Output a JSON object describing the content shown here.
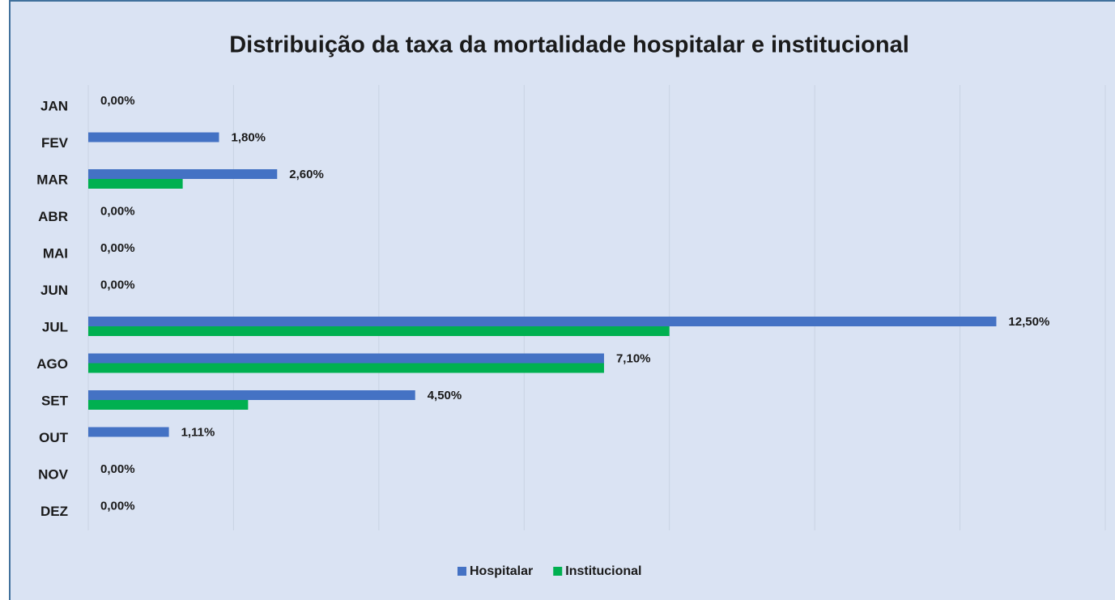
{
  "chart_data": {
    "type": "barh",
    "title": "Distribuição da taxa da mortalidade hospitalar e institucional",
    "categories": [
      "JAN",
      "FEV",
      "MAR",
      "ABR",
      "MAI",
      "JUN",
      "JUL",
      "AGO",
      "SET",
      "OUT",
      "NOV",
      "DEZ"
    ],
    "series": [
      {
        "name": "Hospitalar",
        "color": "#4472c4",
        "values": [
          0,
          1.8,
          2.6,
          0,
          0,
          0,
          12.5,
          7.1,
          4.5,
          1.11,
          0,
          0
        ],
        "value_labels": [
          "0,00%",
          "1,80%",
          "2,60%",
          "0,00%",
          "0,00%",
          "0,00%",
          "12,50%",
          "7,10%",
          "4,50%",
          "1,11%",
          "0,00%",
          "0,00%"
        ]
      },
      {
        "name": "Institucional",
        "color": "#00b050",
        "values": [
          0,
          0,
          1.3,
          0,
          0,
          0,
          8.0,
          7.1,
          2.2,
          0,
          0,
          0
        ]
      }
    ],
    "xlim": [
      0,
      14
    ],
    "xticks": [
      0,
      2,
      4,
      6,
      8,
      10,
      12,
      14
    ],
    "grid": true,
    "legend": "bottom"
  }
}
